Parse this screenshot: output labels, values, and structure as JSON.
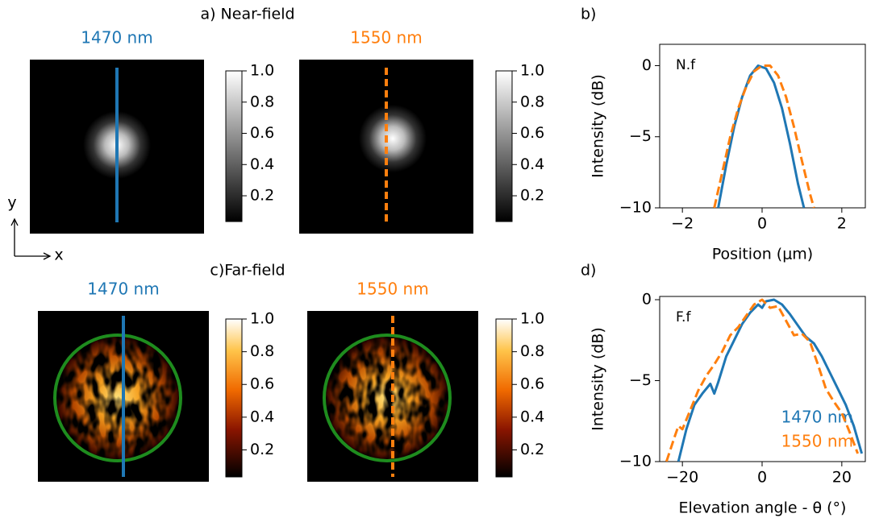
{
  "panel_titles": [
    "a) Near-field",
    "c)Far-field"
  ],
  "axis_indicator": {
    "y": "y",
    "x": "x"
  },
  "chart_data": [
    {
      "type": "heatmap",
      "title": "1470 nm",
      "color": "#1f77b4",
      "line_style": "solid",
      "cmap": "gray",
      "clim": [
        0.035,
        1
      ],
      "cticks": [
        0.2,
        0.4,
        0.6,
        0.8,
        {
          "value": 1,
          "label": "1.0"
        }
      ]
    },
    {
      "type": "heatmap",
      "title": "1550 nm",
      "color": "#ff7f0e",
      "line_style": "dashed",
      "cmap": "gray",
      "clim": [
        0.035,
        1
      ],
      "cticks": [
        0.2,
        0.4,
        0.6,
        0.8,
        {
          "value": 1,
          "label": "1.0"
        }
      ]
    },
    {
      "type": "heatmap",
      "title": "1470 nm",
      "color": "#1f77b4",
      "line_style": "solid",
      "cmap": "afmhot",
      "circle_color": "#1e8c1e",
      "clim": [
        0.035,
        1
      ],
      "cticks": [
        0.2,
        0.4,
        0.6,
        0.8,
        {
          "value": 1,
          "label": "1.0"
        }
      ]
    },
    {
      "type": "heatmap",
      "title": "1550 nm",
      "color": "#ff7f0e",
      "line_style": "dashed",
      "cmap": "afmhot",
      "circle_color": "#1e8c1e",
      "clim": [
        0.035,
        1
      ],
      "cticks": [
        0.2,
        0.4,
        0.6,
        0.8,
        {
          "value": 1,
          "label": "1.0"
        }
      ]
    },
    {
      "type": "line",
      "panel": "b)",
      "annotation": "N.f",
      "xlabel": "Position (μm)",
      "ylabel": "Intensity (dB)",
      "xlim": [
        -2.57,
        2.59
      ],
      "ylim": [
        -10,
        1.5
      ],
      "xticks": [
        {
          "value": -2,
          "label": "−2"
        },
        0,
        2
      ],
      "yticks": [
        {
          "value": -10,
          "label": "−10"
        },
        {
          "value": -5,
          "label": "−5"
        },
        0
      ],
      "series": [
        {
          "color": "#1f77b4",
          "style": "solid",
          "x": [
            -1.1,
            -0.9,
            -0.7,
            -0.5,
            -0.3,
            -0.1,
            0.1,
            0.3,
            0.5,
            0.7,
            0.9,
            1.05
          ],
          "values": [
            -10,
            -7,
            -4.3,
            -2.2,
            -0.7,
            0,
            -0.2,
            -1.2,
            -3,
            -5.5,
            -8.3,
            -10
          ]
        },
        {
          "color": "#ff7f0e",
          "style": "dashed",
          "x": [
            -1.2,
            -1.0,
            -0.8,
            -0.6,
            -0.4,
            -0.2,
            0,
            0.2,
            0.4,
            0.6,
            0.8,
            1.0,
            1.2,
            1.3
          ],
          "values": [
            -10,
            -7.5,
            -5,
            -3,
            -1.5,
            -0.4,
            0,
            0,
            -0.7,
            -2.2,
            -4.3,
            -6.7,
            -9,
            -10
          ]
        }
      ]
    },
    {
      "type": "line",
      "panel": "d)",
      "annotation": "F.f",
      "xlabel": "Elevation angle - θ (°)",
      "ylabel": "Intensity (dB)",
      "xlim": [
        -25.7,
        25.9
      ],
      "ylim": [
        -10,
        0.2
      ],
      "legend": "lower right",
      "xticks": [
        {
          "value": -20,
          "label": "−20"
        },
        0,
        20
      ],
      "yticks": [
        {
          "value": -10,
          "label": "−10"
        },
        {
          "value": -5,
          "label": "−5"
        },
        0
      ],
      "series": [
        {
          "name": "1470 nm",
          "color": "#1f77b4",
          "style": "solid",
          "x": [
            -21,
            -19,
            -17,
            -15,
            -13,
            -12,
            -11,
            -9,
            -7,
            -5,
            -3,
            -1,
            0,
            1,
            3,
            5,
            7,
            9,
            11,
            13,
            15,
            17,
            19,
            21,
            23,
            25
          ],
          "values": [
            -10,
            -8,
            -6.5,
            -5.8,
            -5.2,
            -5.8,
            -5.1,
            -3.5,
            -2.5,
            -1.5,
            -0.8,
            -0.3,
            -0.5,
            -0.1,
            0,
            -0.3,
            -0.9,
            -1.6,
            -2.3,
            -2.7,
            -3.5,
            -4.5,
            -5.5,
            -6.5,
            -7.8,
            -9.5
          ]
        },
        {
          "name": "1550 nm",
          "color": "#ff7f0e",
          "style": "dashed",
          "x": [
            -24,
            -22,
            -21,
            -20,
            -18,
            -16,
            -14,
            -12,
            -10,
            -8,
            -6,
            -4,
            -2,
            0,
            2,
            4,
            6,
            8,
            10,
            12,
            14,
            16,
            18,
            20,
            22,
            24
          ],
          "values": [
            -10,
            -8.5,
            -7.8,
            -8,
            -6.8,
            -5.6,
            -4.7,
            -4,
            -3.2,
            -2.2,
            -1.7,
            -1,
            -0.3,
            0,
            -0.5,
            -0.4,
            -1.3,
            -2.2,
            -2.1,
            -2.6,
            -4,
            -5.5,
            -6.3,
            -7,
            -8.2,
            -9.5
          ]
        }
      ]
    }
  ]
}
